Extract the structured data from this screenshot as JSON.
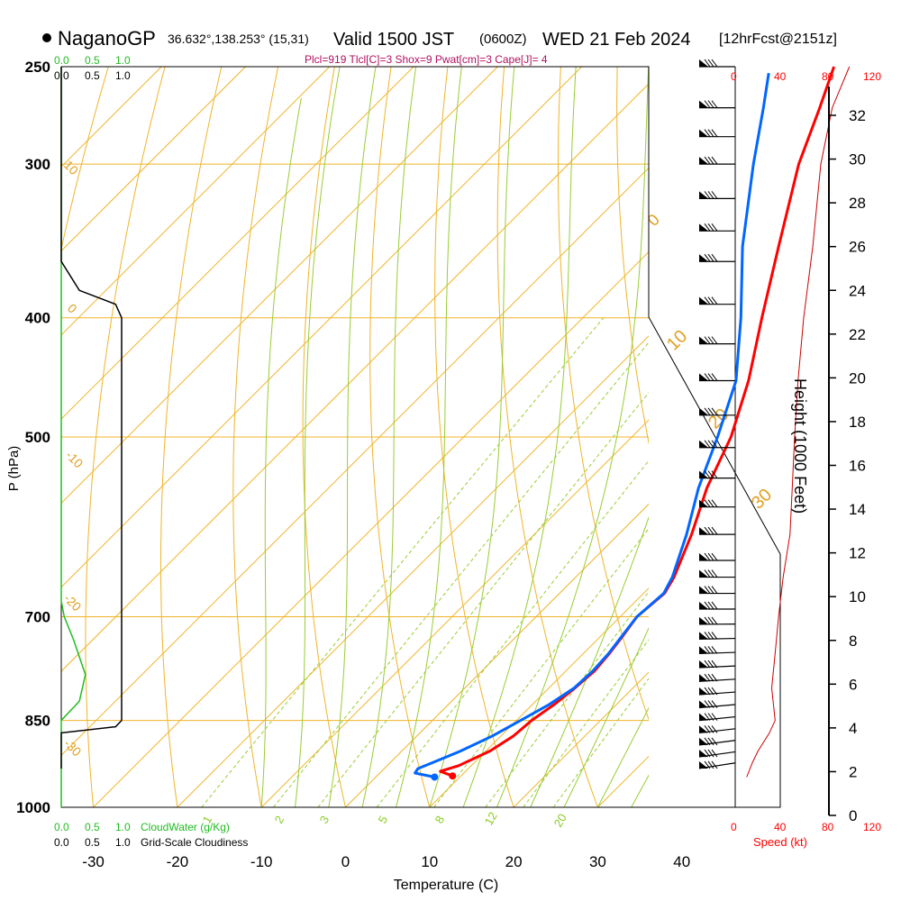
{
  "header": {
    "station": "NaganoGP",
    "coords": "36.632°,138.253° (15,31)",
    "valid": "Valid 1500 JST",
    "zulu": "(0600Z)",
    "date": "WED 21 Feb 2024",
    "forecast": "[12hrFcst@2151z]",
    "indices": "Plcl=919 Tlcl[C]=3 Shox=9 Pwat[cm]=3 Cape[J]= 4"
  },
  "chart_data": {
    "type": "line",
    "title": "NaganoGP  Valid 1500 JST WED 21 Feb 2024",
    "xlabel": "Temperature (C)",
    "ylabel": "P (hPa)",
    "y2label": "Height (1000 Feet)",
    "x_ticks": [
      "-30",
      "-20",
      "-10",
      "0",
      "10",
      "20",
      "30",
      "40"
    ],
    "pressure_ticks": [
      "250",
      "300",
      "400",
      "500",
      "700",
      "850",
      "1000"
    ],
    "height_ticks": [
      "0",
      "2",
      "4",
      "6",
      "8",
      "10",
      "12",
      "14",
      "16",
      "18",
      "20",
      "22",
      "24",
      "26",
      "28",
      "30",
      "32"
    ],
    "isotherm_labels": [
      "10",
      "0",
      "-10",
      "-20",
      "-30",
      "0",
      "10",
      "20",
      "30"
    ],
    "mixing_ratio_labels": [
      "1",
      "2",
      "3",
      "5",
      "8",
      "12",
      "20"
    ],
    "cloud_water_scale": [
      "0.0",
      "0.5",
      "1.0"
    ],
    "cloudiness_scale": [
      "0.0",
      "0.5",
      "1.0"
    ],
    "speed_scale": [
      "0",
      "40",
      "80",
      "120"
    ],
    "cloud_water_label": "CloudWater (g/Kg)",
    "cloudiness_label": "Grid-Scale Cloudiness",
    "speed_label": "Speed (kt)",
    "series": [
      {
        "name": "temperature",
        "color": "#ff0000",
        "points": [
          [
            943,
            9
          ],
          [
            935,
            7
          ],
          [
            925,
            8.5
          ],
          [
            900,
            10.5
          ],
          [
            875,
            11.5
          ],
          [
            850,
            11.8
          ],
          [
            825,
            12.6
          ],
          [
            800,
            13.1
          ],
          [
            775,
            13.4
          ],
          [
            750,
            13.1
          ],
          [
            725,
            12.6
          ],
          [
            700,
            12
          ],
          [
            670,
            12.5
          ],
          [
            650,
            11.7
          ],
          [
            600,
            8.7
          ],
          [
            550,
            5
          ],
          [
            500,
            1.8
          ],
          [
            450,
            -2.8
          ],
          [
            400,
            -8.7
          ],
          [
            350,
            -15.2
          ],
          [
            300,
            -22.6
          ],
          [
            270,
            -26.8
          ],
          [
            250,
            -30
          ]
        ]
      },
      {
        "name": "dewpoint",
        "color": "#0066ff",
        "points": [
          [
            945,
            7
          ],
          [
            938,
            4.2
          ],
          [
            930,
            4
          ],
          [
            920,
            5
          ],
          [
            900,
            7
          ],
          [
            875,
            9
          ],
          [
            850,
            10.5
          ],
          [
            825,
            12
          ],
          [
            800,
            13
          ],
          [
            775,
            13.2
          ],
          [
            750,
            13
          ],
          [
            725,
            12.5
          ],
          [
            700,
            12
          ],
          [
            670,
            12.4
          ],
          [
            650,
            11.5
          ],
          [
            600,
            8.1
          ],
          [
            550,
            4
          ],
          [
            500,
            0.2
          ],
          [
            450,
            -4.3
          ],
          [
            400,
            -11.2
          ],
          [
            350,
            -19.5
          ],
          [
            300,
            -28
          ],
          [
            270,
            -33.5
          ],
          [
            253,
            -37
          ]
        ]
      }
    ],
    "cloud_water_profile": [
      [
        1000,
        0
      ],
      [
        850,
        0
      ],
      [
        820,
        0.3
      ],
      [
        780,
        0.4
      ],
      [
        730,
        0.2
      ],
      [
        700,
        0.05
      ],
      [
        680,
        0
      ],
      [
        250,
        0
      ]
    ],
    "cloudiness_profile": [
      [
        930,
        0
      ],
      [
        870,
        0
      ],
      [
        860,
        0.9
      ],
      [
        850,
        1.0
      ],
      [
        400,
        1.0
      ],
      [
        390,
        0.9
      ],
      [
        380,
        0.3
      ],
      [
        360,
        0
      ],
      [
        250,
        0
      ]
    ],
    "wind_speed_profile": [
      [
        945,
        10
      ],
      [
        920,
        15
      ],
      [
        900,
        20
      ],
      [
        870,
        30
      ],
      [
        850,
        35
      ],
      [
        800,
        32
      ],
      [
        750,
        35
      ],
      [
        700,
        38
      ],
      [
        650,
        42
      ],
      [
        600,
        48
      ],
      [
        550,
        50
      ],
      [
        500,
        52
      ],
      [
        450,
        55
      ],
      [
        400,
        60
      ],
      [
        350,
        68
      ],
      [
        300,
        75
      ],
      [
        270,
        85
      ],
      [
        250,
        100
      ]
    ],
    "wind_barb_pressures": [
      250,
      270,
      285,
      300,
      320,
      340,
      360,
      390,
      420,
      450,
      480,
      510,
      540,
      570,
      600,
      630,
      650,
      670,
      690,
      710,
      730,
      750,
      770,
      790,
      810,
      830,
      850,
      870,
      890,
      910,
      930
    ],
    "xlim": [
      -35,
      45
    ],
    "ylim": [
      1000,
      250
    ],
    "grid": true
  }
}
